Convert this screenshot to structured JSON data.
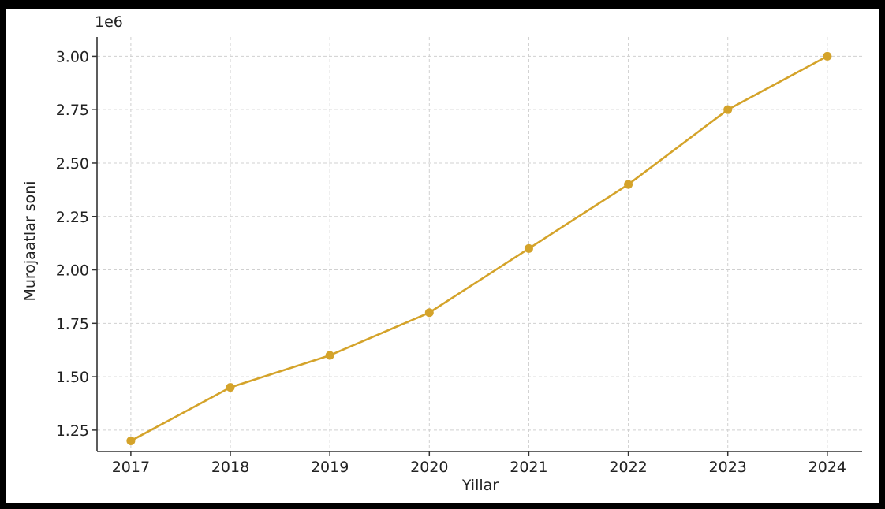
{
  "chart_data": {
    "type": "line",
    "title": "",
    "xlabel": "Yillar",
    "ylabel": "Murojaatlar soni",
    "offset_label": "1e6",
    "x": [
      2017,
      2018,
      2019,
      2020,
      2021,
      2022,
      2023,
      2024
    ],
    "x_tick_labels": [
      "2017",
      "2018",
      "2019",
      "2020",
      "2021",
      "2022",
      "2023",
      "2024"
    ],
    "y_tick_labels": [
      "1.25",
      "1.50",
      "1.75",
      "2.00",
      "2.25",
      "2.50",
      "2.75",
      "3.00"
    ],
    "y_ticks": [
      1250000,
      1500000,
      1750000,
      2000000,
      2250000,
      2500000,
      2750000,
      3000000
    ],
    "series": [
      {
        "values": [
          1200000,
          1450000,
          1600000,
          1800000,
          2100000,
          2400000,
          2750000,
          3000000
        ]
      }
    ],
    "ylim": [
      1150000,
      3090000
    ],
    "xlim": [
      2016.66,
      2024.35
    ],
    "grid": true,
    "line_color": "#d4a32a",
    "grid_color": "#d0d0d0",
    "axis_color": "#333333"
  }
}
